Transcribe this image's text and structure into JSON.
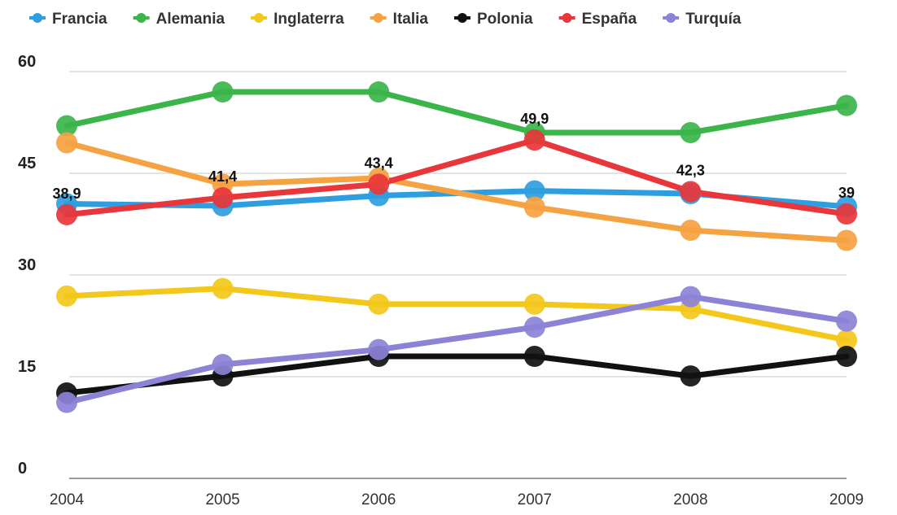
{
  "chart_data": {
    "type": "line",
    "categories": [
      "2004",
      "2005",
      "2006",
      "2007",
      "2008",
      "2009"
    ],
    "ylim": [
      0,
      60
    ],
    "yticks": [
      0,
      15,
      30,
      45,
      60
    ],
    "grid": true,
    "legend_position": "top",
    "series": [
      {
        "name": "Francia",
        "color": "#2f9ee0",
        "values": [
          40.5,
          40.2,
          41.7,
          42.4,
          42.0,
          40.1
        ]
      },
      {
        "name": "Alemania",
        "color": "#3bb54a",
        "values": [
          52.0,
          57.0,
          57.0,
          51.0,
          51.0,
          55.0
        ]
      },
      {
        "name": "Inglaterra",
        "color": "#f3c81b",
        "values": [
          26.9,
          28.0,
          25.7,
          25.7,
          25.0,
          20.4
        ]
      },
      {
        "name": "Italia",
        "color": "#f5a242",
        "values": [
          49.5,
          43.4,
          44.3,
          40.0,
          36.6,
          35.1
        ]
      },
      {
        "name": "Polonia",
        "color": "#111111",
        "values": [
          12.6,
          15.1,
          18.0,
          18.0,
          15.1,
          18.0
        ]
      },
      {
        "name": "España",
        "color": "#e8363a",
        "values": [
          38.9,
          41.4,
          43.4,
          49.9,
          42.3,
          39.0
        ]
      },
      {
        "name": "Turquía",
        "color": "#8c83d6",
        "values": [
          11.2,
          16.8,
          19.0,
          22.3,
          26.8,
          23.2
        ]
      }
    ],
    "data_labels": [
      {
        "series": "España",
        "index": 0,
        "text": "38,9"
      },
      {
        "series": "España",
        "index": 1,
        "text": "41,4"
      },
      {
        "series": "España",
        "index": 2,
        "text": "43,4"
      },
      {
        "series": "España",
        "index": 3,
        "text": "49,9"
      },
      {
        "series": "España",
        "index": 4,
        "text": "42,3"
      },
      {
        "series": "España",
        "index": 5,
        "text": "39"
      }
    ]
  }
}
